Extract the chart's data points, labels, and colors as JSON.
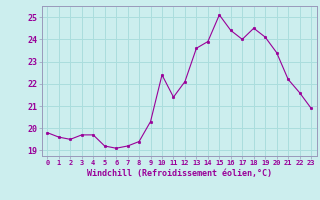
{
  "x": [
    0,
    1,
    2,
    3,
    4,
    5,
    6,
    7,
    8,
    9,
    10,
    11,
    12,
    13,
    14,
    15,
    16,
    17,
    18,
    19,
    20,
    21,
    22,
    23
  ],
  "y": [
    19.8,
    19.6,
    19.5,
    19.7,
    19.7,
    19.2,
    19.1,
    19.2,
    19.4,
    20.3,
    22.4,
    21.4,
    22.1,
    23.6,
    23.9,
    25.1,
    24.4,
    24.0,
    24.5,
    24.1,
    23.4,
    22.2,
    21.6,
    20.9
  ],
  "xlabel": "Windchill (Refroidissement éolien,°C)",
  "xlim": [
    -0.5,
    23.5
  ],
  "ylim": [
    18.75,
    25.5
  ],
  "yticks": [
    19,
    20,
    21,
    22,
    23,
    24,
    25
  ],
  "xticks": [
    0,
    1,
    2,
    3,
    4,
    5,
    6,
    7,
    8,
    9,
    10,
    11,
    12,
    13,
    14,
    15,
    16,
    17,
    18,
    19,
    20,
    21,
    22,
    23
  ],
  "line_color": "#990099",
  "marker_color": "#990099",
  "bg_color": "#cceeee",
  "grid_color": "#aadddd",
  "label_color": "#990099",
  "spine_color": "#9999bb"
}
